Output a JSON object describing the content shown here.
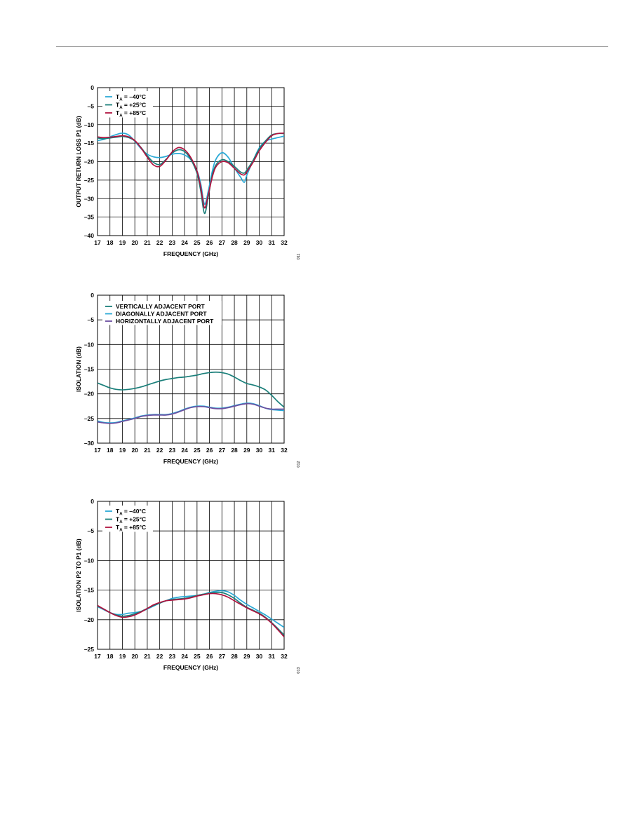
{
  "colors": {
    "cyan": "#2aa9d6",
    "teal": "#1a7f7a",
    "red": "#b0133f",
    "purple": "#6b4fa0",
    "grid": "#000000"
  },
  "chart_data": [
    {
      "type": "line",
      "title": "",
      "xlabel": "FREQUENCY (GHz)",
      "ylabel": "OUTPUT RETURN LOSS P1 (dB)",
      "xlim": [
        17,
        32
      ],
      "ylim": [
        -40,
        0
      ],
      "xticks": [
        17,
        18,
        19,
        20,
        21,
        22,
        23,
        24,
        25,
        26,
        27,
        28,
        29,
        30,
        31,
        32
      ],
      "yticks": [
        0,
        -5,
        -10,
        -15,
        -20,
        -25,
        -30,
        -35,
        -40
      ],
      "legend_position": "top-left",
      "side_code": "011",
      "series": [
        {
          "name": "T = –40°C",
          "name_sub": "A",
          "name_main": "T",
          "name_rest": " = –40°C",
          "color": "#2aa9d6",
          "x": [
            17,
            17.5,
            18,
            18.5,
            19,
            19.5,
            20,
            20.5,
            21,
            21.5,
            22,
            22.5,
            23,
            23.5,
            24,
            24.5,
            25,
            25.3,
            25.6,
            25.9,
            26.2,
            26.5,
            27,
            27.5,
            28,
            28.5,
            28.8,
            29,
            29.5,
            30,
            30.5,
            31,
            31.5,
            32
          ],
          "values": [
            -14.3,
            -14,
            -13.3,
            -12.7,
            -12.3,
            -12.8,
            -14.5,
            -16.5,
            -18,
            -18.7,
            -18.9,
            -18.6,
            -18,
            -17.8,
            -18.2,
            -19.5,
            -22.5,
            -26,
            -31.5,
            -28,
            -23,
            -19.5,
            -17.6,
            -18.8,
            -21.7,
            -24.2,
            -25.6,
            -23.7,
            -19.8,
            -16.3,
            -14.5,
            -13.9,
            -13.5,
            -13.1
          ]
        },
        {
          "name": "T = +25°C",
          "name_sub": "A",
          "name_main": "T",
          "name_rest": " = +25°C",
          "color": "#1a7f7a",
          "x": [
            17,
            17.5,
            18,
            18.5,
            19,
            19.5,
            20,
            20.5,
            21,
            21.5,
            22,
            22.5,
            23,
            23.5,
            24,
            24.5,
            25,
            25.3,
            25.6,
            25.9,
            26.2,
            26.5,
            27,
            27.5,
            28,
            28.5,
            28.8,
            29,
            29.5,
            30,
            30.5,
            31,
            31.5,
            32
          ],
          "values": [
            -13.6,
            -13.8,
            -13.6,
            -13.4,
            -13.2,
            -13.5,
            -14.4,
            -16.2,
            -18.4,
            -20.2,
            -20.8,
            -19.4,
            -17.7,
            -16.8,
            -17.3,
            -19.4,
            -23.2,
            -28,
            -34,
            -29.5,
            -24,
            -21,
            -19.5,
            -20,
            -21.3,
            -22.8,
            -23.1,
            -22.3,
            -19.7,
            -16.6,
            -14.4,
            -12.8,
            -12.4,
            -12.4
          ]
        },
        {
          "name": "T = +85°C",
          "name_sub": "A",
          "name_main": "T",
          "name_rest": " = +85°C",
          "color": "#b0133f",
          "x": [
            17,
            17.5,
            18,
            18.5,
            19,
            19.5,
            20,
            20.5,
            21,
            21.5,
            22,
            22.5,
            23,
            23.5,
            24,
            24.5,
            25,
            25.3,
            25.6,
            25.9,
            26.2,
            26.5,
            27,
            27.5,
            28,
            28.5,
            28.8,
            29,
            29.5,
            30,
            30.5,
            31,
            31.5,
            32
          ],
          "values": [
            -13.3,
            -13.5,
            -13.4,
            -13.2,
            -13,
            -13.3,
            -14.3,
            -16.3,
            -18.8,
            -20.9,
            -21.3,
            -19.6,
            -17.4,
            -16.2,
            -16.8,
            -18.9,
            -22.6,
            -27,
            -32.5,
            -29,
            -24.5,
            -21.5,
            -20,
            -20.3,
            -21.8,
            -23.3,
            -23.6,
            -22.8,
            -20.2,
            -17.1,
            -14.8,
            -13,
            -12.4,
            -12.3
          ]
        }
      ]
    },
    {
      "type": "line",
      "title": "",
      "xlabel": "FREQUENCY (GHz)",
      "ylabel": "ISOLATION (dB)",
      "xlim": [
        17,
        32
      ],
      "ylim": [
        -30,
        0
      ],
      "xticks": [
        17,
        18,
        19,
        20,
        21,
        22,
        23,
        24,
        25,
        26,
        27,
        28,
        29,
        30,
        31,
        32
      ],
      "yticks": [
        0,
        -5,
        -10,
        -15,
        -20,
        -25,
        -30
      ],
      "legend_position": "top-left",
      "side_code": "012",
      "series": [
        {
          "name": "VERTICALLY ADJACENT PORT",
          "color": "#1a7f7a",
          "x": [
            17,
            17.5,
            18,
            18.5,
            19,
            19.5,
            20,
            20.5,
            21,
            21.5,
            22,
            22.5,
            23,
            23.5,
            24,
            24.5,
            25,
            25.5,
            26,
            26.5,
            27,
            27.5,
            28,
            28.5,
            29,
            29.5,
            30,
            30.5,
            31,
            31.5,
            32
          ],
          "values": [
            -17.8,
            -18.3,
            -18.8,
            -19.1,
            -19.2,
            -19.1,
            -18.9,
            -18.6,
            -18.2,
            -17.8,
            -17.4,
            -17.1,
            -16.9,
            -16.7,
            -16.6,
            -16.4,
            -16.2,
            -15.9,
            -15.7,
            -15.6,
            -15.7,
            -16,
            -16.6,
            -17.3,
            -17.9,
            -18.2,
            -18.6,
            -19.2,
            -20.3,
            -21.6,
            -22.7
          ]
        },
        {
          "name": "DIAGONALLY ADJACENT PORT",
          "color": "#2aa9d6",
          "x": [
            17,
            17.5,
            18,
            18.5,
            19,
            19.5,
            20,
            20.5,
            21,
            21.5,
            22,
            22.5,
            23,
            23.5,
            24,
            24.5,
            25,
            25.5,
            26,
            26.5,
            27,
            27.5,
            28,
            28.5,
            29,
            29.5,
            30,
            30.5,
            31,
            31.5,
            32
          ],
          "values": [
            -25.5,
            -25.8,
            -25.9,
            -25.8,
            -25.5,
            -25.2,
            -24.9,
            -24.5,
            -24.3,
            -24.2,
            -24.2,
            -24.2,
            -24,
            -23.6,
            -23.1,
            -22.7,
            -22.5,
            -22.5,
            -22.7,
            -22.9,
            -22.9,
            -22.7,
            -22.4,
            -22.1,
            -21.9,
            -22,
            -22.4,
            -22.9,
            -23.2,
            -23.3,
            -23.4
          ]
        },
        {
          "name": "HORIZONTALLY ADJACENT PORT",
          "color": "#6b4fa0",
          "x": [
            17,
            17.5,
            18,
            18.5,
            19,
            19.5,
            20,
            20.5,
            21,
            21.5,
            22,
            22.5,
            23,
            23.5,
            24,
            24.5,
            25,
            25.5,
            26,
            26.5,
            27,
            27.5,
            28,
            28.5,
            29,
            29.5,
            30,
            30.5,
            31,
            31.5,
            32
          ],
          "values": [
            -25.7,
            -25.9,
            -26,
            -25.9,
            -25.6,
            -25.3,
            -25,
            -24.6,
            -24.4,
            -24.3,
            -24.3,
            -24.3,
            -24.1,
            -23.7,
            -23.2,
            -22.8,
            -22.6,
            -22.6,
            -22.8,
            -23,
            -23,
            -22.8,
            -22.5,
            -22.2,
            -22,
            -22.1,
            -22.5,
            -22.9,
            -23.1,
            -23.1,
            -23.1
          ]
        }
      ]
    },
    {
      "type": "line",
      "title": "",
      "xlabel": "FREQUENCY (GHz)",
      "ylabel": "ISOLATION P2 TO P1 (dB)",
      "xlim": [
        17,
        32
      ],
      "ylim": [
        -25,
        0
      ],
      "xticks": [
        17,
        18,
        19,
        20,
        21,
        22,
        23,
        24,
        25,
        26,
        27,
        28,
        29,
        30,
        31,
        32
      ],
      "yticks": [
        0,
        -5,
        -10,
        -15,
        -20,
        -25
      ],
      "legend_position": "top-left",
      "side_code": "013",
      "series": [
        {
          "name": "T = –40°C",
          "name_sub": "A",
          "name_main": "T",
          "name_rest": " = –40°C",
          "color": "#2aa9d6",
          "x": [
            17,
            17.5,
            18,
            18.5,
            19,
            19.5,
            20,
            20.5,
            21,
            21.5,
            22,
            22.5,
            23,
            23.5,
            24,
            24.5,
            25,
            25.5,
            26,
            26.5,
            27,
            27.5,
            28,
            28.5,
            29,
            29.5,
            30,
            30.5,
            31,
            31.5,
            32
          ],
          "values": [
            -17.8,
            -18.3,
            -18.8,
            -19.1,
            -19.1,
            -18.9,
            -18.8,
            -18.6,
            -18.2,
            -17.7,
            -17.2,
            -16.8,
            -16.4,
            -16.2,
            -16.1,
            -16,
            -15.9,
            -15.7,
            -15.4,
            -15.2,
            -15.1,
            -15.3,
            -15.9,
            -16.7,
            -17.4,
            -18,
            -18.6,
            -19.2,
            -19.9,
            -20.6,
            -21.3
          ]
        },
        {
          "name": "T = +25°C",
          "name_sub": "A",
          "name_main": "T",
          "name_rest": " = +25°C",
          "color": "#1a7f7a",
          "x": [
            17,
            17.5,
            18,
            18.5,
            19,
            19.5,
            20,
            20.5,
            21,
            21.5,
            22,
            22.5,
            23,
            23.5,
            24,
            24.5,
            25,
            25.5,
            26,
            26.5,
            27,
            27.5,
            28,
            28.5,
            29,
            29.5,
            30,
            30.5,
            31,
            31.5,
            32
          ],
          "values": [
            -17.7,
            -18.2,
            -18.8,
            -19.2,
            -19.4,
            -19.3,
            -19,
            -18.6,
            -18.1,
            -17.6,
            -17.2,
            -16.8,
            -16.6,
            -16.5,
            -16.4,
            -16.2,
            -15.9,
            -15.7,
            -15.5,
            -15.4,
            -15.4,
            -15.8,
            -16.4,
            -17.2,
            -17.9,
            -18.4,
            -18.9,
            -19.6,
            -20.5,
            -21.5,
            -22.6
          ]
        },
        {
          "name": "T = +85°C",
          "name_sub": "A",
          "name_main": "T",
          "name_rest": " = +85°C",
          "color": "#b0133f",
          "x": [
            17,
            17.5,
            18,
            18.5,
            19,
            19.5,
            20,
            20.5,
            21,
            21.5,
            22,
            22.5,
            23,
            23.5,
            24,
            24.5,
            25,
            25.5,
            26,
            26.5,
            27,
            27.5,
            28,
            28.5,
            29,
            29.5,
            30,
            30.5,
            31,
            31.5,
            32
          ],
          "values": [
            -17.6,
            -18.2,
            -18.8,
            -19.3,
            -19.6,
            -19.5,
            -19.2,
            -18.7,
            -18.1,
            -17.5,
            -17.1,
            -16.8,
            -16.7,
            -16.6,
            -16.5,
            -16.3,
            -16,
            -15.8,
            -15.6,
            -15.6,
            -15.8,
            -16.2,
            -16.8,
            -17.4,
            -18,
            -18.5,
            -19,
            -19.7,
            -20.6,
            -21.7,
            -22.9
          ]
        }
      ]
    }
  ]
}
